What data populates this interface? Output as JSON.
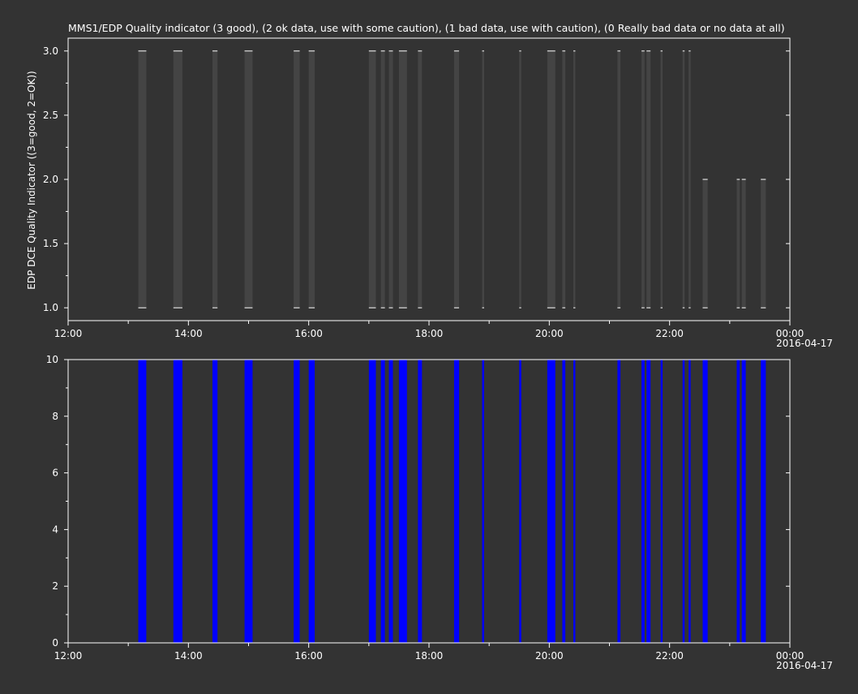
{
  "chart_data": [
    {
      "type": "bar",
      "title": "MMS1/EDP  Quality indicator (3 good), (2 ok data, use with some caution), (1 bad data, use with caution), (0 Really bad data or no data at all)",
      "ylabel": "EDP DCE Quality Indicator ((3=good, 2=OK))",
      "xlabel": "",
      "x_axis": {
        "type": "time",
        "range": [
          "2016-04-16 12:00",
          "2016-04-17 00:00"
        ],
        "tick_labels": [
          "12:00",
          "14:00",
          "16:00",
          "18:00",
          "20:00",
          "22:00",
          "00:00"
        ],
        "date_label": "2016-04-17"
      },
      "ylim": [
        0.9,
        3.1
      ],
      "y_ticks": [
        "1.0",
        "1.5",
        "2.0",
        "2.5",
        "3.0"
      ],
      "bar_color": "#444444",
      "segments": [
        {
          "start": "13:10",
          "end": "13:18",
          "value": 3
        },
        {
          "start": "13:45",
          "end": "13:54",
          "value": 3
        },
        {
          "start": "14:24",
          "end": "14:29",
          "value": 3
        },
        {
          "start": "14:56",
          "end": "15:04",
          "value": 3
        },
        {
          "start": "15:45",
          "end": "15:51",
          "value": 3
        },
        {
          "start": "16:00",
          "end": "16:06",
          "value": 3
        },
        {
          "start": "17:00",
          "end": "17:07",
          "value": 3
        },
        {
          "start": "17:12",
          "end": "17:16",
          "value": 3
        },
        {
          "start": "17:20",
          "end": "17:24",
          "value": 3
        },
        {
          "start": "17:30",
          "end": "17:38",
          "value": 3
        },
        {
          "start": "17:49",
          "end": "17:53",
          "value": 3
        },
        {
          "start": "18:25",
          "end": "18:30",
          "value": 3
        },
        {
          "start": "18:53",
          "end": "18:55",
          "value": 3
        },
        {
          "start": "19:30",
          "end": "19:32",
          "value": 3
        },
        {
          "start": "19:58",
          "end": "20:06",
          "value": 3
        },
        {
          "start": "20:13",
          "end": "20:16",
          "value": 3
        },
        {
          "start": "20:24",
          "end": "20:26",
          "value": 3
        },
        {
          "start": "21:08",
          "end": "21:11",
          "value": 3
        },
        {
          "start": "21:32",
          "end": "21:35",
          "value": 3
        },
        {
          "start": "21:37",
          "end": "21:41",
          "value": 3
        },
        {
          "start": "21:51",
          "end": "21:53",
          "value": 3
        },
        {
          "start": "22:13",
          "end": "22:15",
          "value": 3
        },
        {
          "start": "22:19",
          "end": "22:21",
          "value": 3
        },
        {
          "start": "22:33",
          "end": "22:38",
          "value": 2
        },
        {
          "start": "23:07",
          "end": "23:10",
          "value": 2
        },
        {
          "start": "23:12",
          "end": "23:16",
          "value": 2
        },
        {
          "start": "23:31",
          "end": "23:36",
          "value": 2
        }
      ]
    },
    {
      "type": "bar",
      "title": "",
      "ylabel": "",
      "xlabel": "",
      "x_axis": {
        "type": "time",
        "range": [
          "2016-04-16 12:00",
          "2016-04-17 00:00"
        ],
        "tick_labels": [
          "12:00",
          "14:00",
          "16:00",
          "18:00",
          "20:00",
          "22:00",
          "00:00"
        ],
        "date_label": "2016-04-17"
      },
      "ylim": [
        0,
        10
      ],
      "y_ticks": [
        "0",
        "2",
        "4",
        "6",
        "8",
        "10"
      ],
      "bar_color": "#0000ff",
      "segments": [
        {
          "start": "13:10",
          "end": "13:18",
          "value": 10
        },
        {
          "start": "13:45",
          "end": "13:54",
          "value": 10
        },
        {
          "start": "14:24",
          "end": "14:29",
          "value": 10
        },
        {
          "start": "14:56",
          "end": "15:04",
          "value": 10
        },
        {
          "start": "15:45",
          "end": "15:51",
          "value": 10
        },
        {
          "start": "16:00",
          "end": "16:06",
          "value": 10
        },
        {
          "start": "17:00",
          "end": "17:07",
          "value": 10
        },
        {
          "start": "17:12",
          "end": "17:16",
          "value": 10
        },
        {
          "start": "17:20",
          "end": "17:24",
          "value": 10
        },
        {
          "start": "17:30",
          "end": "17:38",
          "value": 10
        },
        {
          "start": "17:49",
          "end": "17:53",
          "value": 10
        },
        {
          "start": "18:25",
          "end": "18:30",
          "value": 10
        },
        {
          "start": "18:53",
          "end": "18:55",
          "value": 10
        },
        {
          "start": "19:30",
          "end": "19:32",
          "value": 10
        },
        {
          "start": "19:58",
          "end": "20:06",
          "value": 10
        },
        {
          "start": "20:13",
          "end": "20:16",
          "value": 10
        },
        {
          "start": "20:24",
          "end": "20:26",
          "value": 10
        },
        {
          "start": "21:08",
          "end": "21:11",
          "value": 10
        },
        {
          "start": "21:32",
          "end": "21:35",
          "value": 10
        },
        {
          "start": "21:37",
          "end": "21:41",
          "value": 10
        },
        {
          "start": "21:51",
          "end": "21:53",
          "value": 10
        },
        {
          "start": "22:13",
          "end": "22:15",
          "value": 10
        },
        {
          "start": "22:19",
          "end": "22:21",
          "value": 10
        },
        {
          "start": "22:33",
          "end": "22:38",
          "value": 10
        },
        {
          "start": "23:07",
          "end": "23:10",
          "value": 10
        },
        {
          "start": "23:12",
          "end": "23:16",
          "value": 10
        },
        {
          "start": "23:31",
          "end": "23:36",
          "value": 10
        }
      ]
    }
  ]
}
